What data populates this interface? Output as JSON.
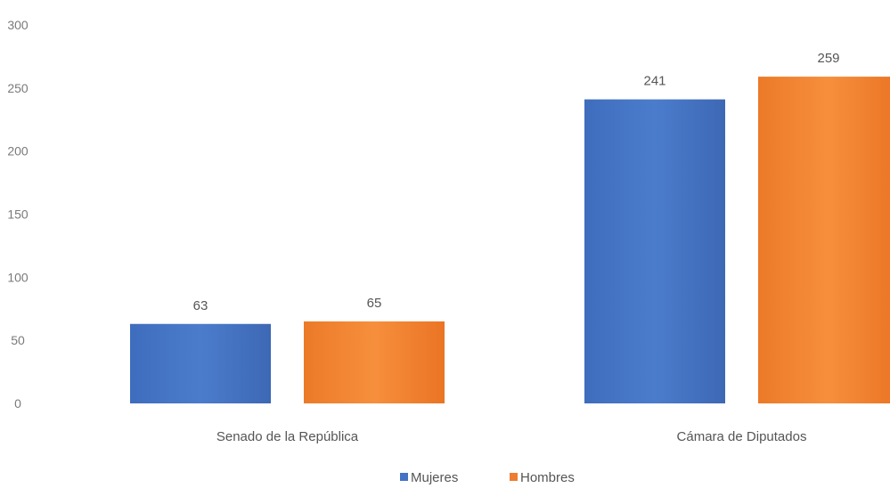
{
  "chart_data": {
    "type": "bar",
    "categories": [
      "Senado de la República",
      "Cámara de Diputados"
    ],
    "series": [
      {
        "name": "Mujeres",
        "values": [
          63,
          241
        ],
        "color": "#4472c4"
      },
      {
        "name": "Hombres",
        "values": [
          65,
          259
        ],
        "color": "#ed7d31"
      }
    ],
    "yticks": [
      0,
      50,
      100,
      150,
      200,
      250,
      300
    ],
    "ylim": [
      0,
      300
    ],
    "grid": false,
    "legend": "bottom-center",
    "data_labels": true
  }
}
